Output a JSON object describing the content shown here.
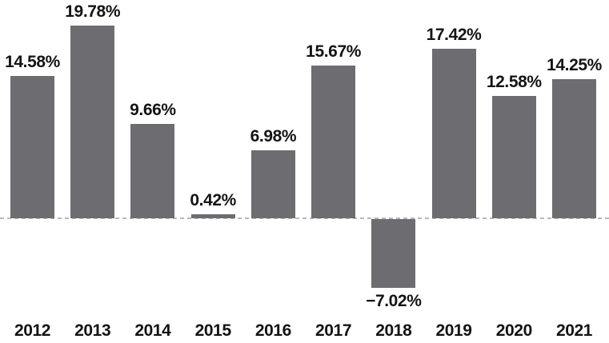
{
  "chart_data": {
    "type": "bar",
    "title": "",
    "xlabel": "",
    "ylabel": "",
    "categories": [
      "2012",
      "2013",
      "2014",
      "2015",
      "2016",
      "2017",
      "2018",
      "2019",
      "2020",
      "2021"
    ],
    "values": [
      14.58,
      19.78,
      9.66,
      0.42,
      6.98,
      15.67,
      -7.02,
      17.42,
      12.58,
      14.25
    ],
    "value_labels": [
      "14.58%",
      "19.78%",
      "9.66%",
      "0.42%",
      "6.98%",
      "15.67%",
      "−7.02%",
      "17.42%",
      "12.58%",
      "14.25%"
    ],
    "ylim": [
      -10,
      22
    ],
    "baseline": 0,
    "grid": false,
    "legend": false,
    "axis_lines": "dashed zero baseline only",
    "colors": {
      "bar": "#6d6d71",
      "baseline_dash": "#b9b9b9",
      "label_text": "#141414",
      "background": "#ffffff"
    }
  }
}
